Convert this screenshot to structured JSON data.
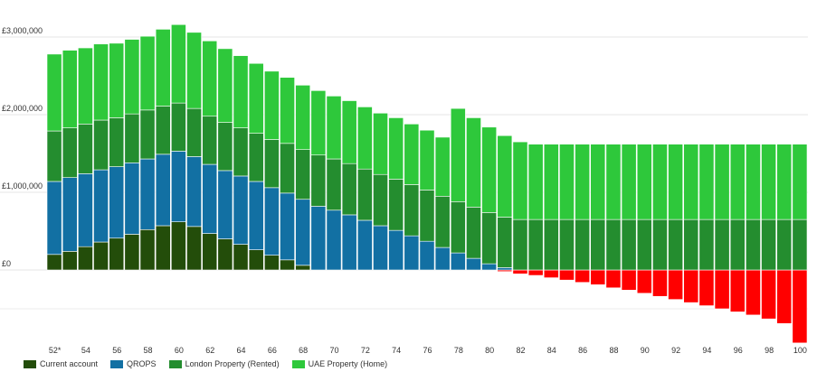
{
  "chart_data": {
    "type": "bar",
    "stacked": true,
    "ylim": [
      -1000000,
      3250000
    ],
    "y_ticks": [
      {
        "value": 0,
        "label": "£0"
      },
      {
        "value": 1000000,
        "label": "£1,000,000"
      },
      {
        "value": 2000000,
        "label": "£2,000,000"
      },
      {
        "value": 3000000,
        "label": "£3,000,000"
      }
    ],
    "x_tick_labels": [
      "52*",
      "54",
      "56",
      "58",
      "60",
      "62",
      "64",
      "66",
      "68",
      "70",
      "72",
      "74",
      "76",
      "78",
      "80",
      "82",
      "84",
      "86",
      "88",
      "90",
      "92",
      "94",
      "96",
      "98",
      "100"
    ],
    "categories": [
      52,
      53,
      54,
      55,
      56,
      57,
      58,
      59,
      60,
      61,
      62,
      63,
      64,
      65,
      66,
      67,
      68,
      69,
      70,
      71,
      72,
      73,
      74,
      75,
      76,
      77,
      78,
      79,
      80,
      81,
      82,
      83,
      84,
      85,
      86,
      87,
      88,
      89,
      90,
      91,
      92,
      93,
      94,
      95,
      96,
      97,
      98,
      99,
      100
    ],
    "grid": true,
    "legend_position": "bottom-left",
    "series": [
      {
        "name": "Current account",
        "color": "#234d0a",
        "values": [
          200000,
          240000,
          300000,
          360000,
          410000,
          460000,
          520000,
          570000,
          620000,
          560000,
          470000,
          400000,
          330000,
          260000,
          190000,
          130000,
          60000,
          0,
          0,
          0,
          0,
          0,
          0,
          0,
          0,
          0,
          0,
          0,
          0,
          -20000,
          -50000,
          -70000,
          -100000,
          -130000,
          -160000,
          -190000,
          -230000,
          -260000,
          -300000,
          -340000,
          -380000,
          -420000,
          -460000,
          -500000,
          -540000,
          -580000,
          -630000,
          -690000,
          -940000
        ]
      },
      {
        "name": "QROPS",
        "color": "#1270a3",
        "values": [
          940000,
          950000,
          940000,
          930000,
          920000,
          920000,
          910000,
          920000,
          910000,
          900000,
          890000,
          880000,
          880000,
          880000,
          870000,
          860000,
          850000,
          820000,
          770000,
          710000,
          640000,
          570000,
          510000,
          440000,
          370000,
          290000,
          220000,
          150000,
          80000,
          30000,
          0,
          0,
          0,
          0,
          0,
          0,
          0,
          0,
          0,
          0,
          0,
          0,
          0,
          0,
          0,
          0,
          0,
          0,
          0
        ]
      },
      {
        "name": "London Property (Rented)",
        "color": "#248d2f",
        "values": [
          650000,
          640000,
          640000,
          640000,
          630000,
          630000,
          630000,
          620000,
          620000,
          620000,
          620000,
          620000,
          620000,
          620000,
          620000,
          640000,
          640000,
          660000,
          660000,
          660000,
          660000,
          660000,
          660000,
          660000,
          660000,
          660000,
          660000,
          660000,
          660000,
          650000,
          650000,
          650000,
          650000,
          650000,
          650000,
          650000,
          650000,
          650000,
          650000,
          650000,
          650000,
          650000,
          650000,
          650000,
          650000,
          650000,
          650000,
          650000,
          650000
        ]
      },
      {
        "name": "UAE Property (Home)",
        "color": "#2ec83b",
        "values": [
          990000,
          1000000,
          980000,
          980000,
          960000,
          960000,
          950000,
          990000,
          1010000,
          980000,
          970000,
          950000,
          930000,
          900000,
          880000,
          850000,
          830000,
          830000,
          810000,
          810000,
          800000,
          790000,
          790000,
          780000,
          770000,
          760000,
          1200000,
          1150000,
          1100000,
          1050000,
          1000000,
          970000,
          970000,
          970000,
          970000,
          970000,
          970000,
          970000,
          970000,
          970000,
          970000,
          970000,
          970000,
          970000,
          970000,
          970000,
          970000,
          970000,
          970000
        ]
      }
    ]
  }
}
